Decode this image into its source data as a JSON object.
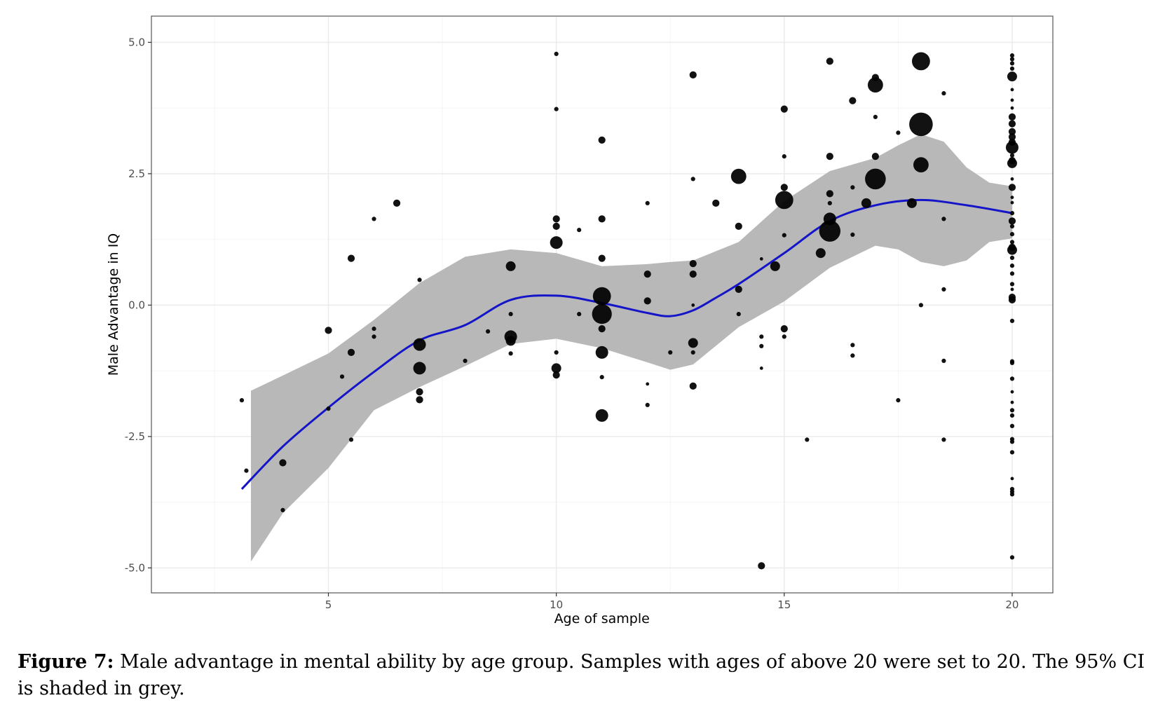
{
  "chart_data": {
    "type": "scatter",
    "title": "",
    "xlabel": "Age of sample",
    "ylabel": "Male Advantage in IQ",
    "xlim": [
      1.1,
      20.9
    ],
    "ylim": [
      -5.48,
      5.5
    ],
    "x_ticks": [
      5,
      10,
      15,
      20
    ],
    "x_tick_labels": [
      "5",
      "10",
      "15",
      "20"
    ],
    "y_ticks": [
      5,
      2.5,
      0,
      -2.5,
      -5
    ],
    "y_tick_labels": [
      "5.0",
      "2.5",
      "0.0",
      "-2.5",
      "-5.0"
    ],
    "grid": true,
    "legend": "none",
    "colors": {
      "points": "#000000",
      "smooth": "#1414c8",
      "ribbon": "#b8b8b8",
      "grid_major": "#ebebeb",
      "grid_minor": "#f4f4f4"
    },
    "points_format": "[age, male_advantage, relative_size]",
    "points": [
      [
        3.1,
        -1.81,
        0.5
      ],
      [
        3.2,
        -3.15,
        0.5
      ],
      [
        4,
        -3.0,
        1
      ],
      [
        4,
        -3.9,
        0.5
      ],
      [
        5,
        -0.48,
        1
      ],
      [
        5,
        -1.97,
        0.5
      ],
      [
        5.3,
        -1.36,
        0.5
      ],
      [
        5.5,
        -0.9,
        1
      ],
      [
        5.5,
        0.89,
        1
      ],
      [
        5.5,
        -2.56,
        0.5
      ],
      [
        6,
        1.64,
        0.5
      ],
      [
        6,
        -0.45,
        0.5
      ],
      [
        6,
        -0.6,
        0.5
      ],
      [
        6.5,
        1.94,
        1
      ],
      [
        7,
        0.48,
        0.5
      ],
      [
        7,
        -0.75,
        2
      ],
      [
        7,
        -1.2,
        2
      ],
      [
        7,
        -1.65,
        1
      ],
      [
        7,
        -1.8,
        1
      ],
      [
        8,
        -1.06,
        0.5
      ],
      [
        8.5,
        -0.5,
        0.5
      ],
      [
        9,
        0.74,
        1.5
      ],
      [
        9,
        -0.17,
        0.5
      ],
      [
        9,
        -0.6,
        2
      ],
      [
        9,
        -0.68,
        1.5
      ],
      [
        9,
        -0.92,
        0.5
      ],
      [
        10,
        4.78,
        0.5
      ],
      [
        10,
        3.73,
        0.5
      ],
      [
        10,
        1.64,
        1
      ],
      [
        10,
        1.5,
        1
      ],
      [
        10,
        1.19,
        2
      ],
      [
        10,
        -0.9,
        0.5
      ],
      [
        10,
        -1.2,
        1.5
      ],
      [
        10,
        -1.33,
        1
      ],
      [
        10.5,
        1.43,
        0.5
      ],
      [
        10.5,
        -0.17,
        0.5
      ],
      [
        11,
        3.14,
        1
      ],
      [
        11,
        1.64,
        1
      ],
      [
        11,
        0.89,
        1
      ],
      [
        11,
        0.17,
        3
      ],
      [
        11,
        -0.17,
        3.3
      ],
      [
        11,
        -0.45,
        1
      ],
      [
        11,
        -0.9,
        2
      ],
      [
        11,
        -1.37,
        0.5
      ],
      [
        11,
        -2.1,
        2
      ],
      [
        12,
        1.94,
        0.5
      ],
      [
        12,
        0.59,
        1
      ],
      [
        12,
        0.08,
        1
      ],
      [
        12,
        -1.5,
        0.3
      ],
      [
        12,
        -1.9,
        0.5
      ],
      [
        12.5,
        -0.9,
        0.5
      ],
      [
        13,
        4.38,
        1
      ],
      [
        13,
        2.4,
        0.5
      ],
      [
        13,
        0.79,
        1
      ],
      [
        13,
        0.59,
        1
      ],
      [
        13,
        0,
        0.3
      ],
      [
        13,
        -0.72,
        1.5
      ],
      [
        13,
        -0.9,
        0.5
      ],
      [
        13,
        -1.54,
        1
      ],
      [
        13.5,
        1.94,
        1
      ],
      [
        14,
        2.45,
        2.5
      ],
      [
        14,
        1.5,
        1
      ],
      [
        14,
        0.3,
        1
      ],
      [
        14,
        -0.17,
        0.5
      ],
      [
        14.5,
        0.88,
        0.3
      ],
      [
        14.5,
        -0.6,
        0.5
      ],
      [
        14.5,
        -0.78,
        0.5
      ],
      [
        14.5,
        -1.2,
        0.3
      ],
      [
        14.5,
        -4.96,
        1
      ],
      [
        14.8,
        0.74,
        1.5
      ],
      [
        15,
        3.73,
        1
      ],
      [
        15,
        2.83,
        0.5
      ],
      [
        15,
        2.24,
        1
      ],
      [
        15,
        2.0,
        3
      ],
      [
        15,
        1.33,
        0.5
      ],
      [
        15,
        -0.45,
        1
      ],
      [
        15,
        -0.6,
        0.5
      ],
      [
        15.5,
        -2.56,
        0.5
      ],
      [
        15.8,
        0.99,
        1.5
      ],
      [
        16,
        4.64,
        1
      ],
      [
        16,
        2.83,
        1
      ],
      [
        16,
        2.12,
        1
      ],
      [
        16,
        1.94,
        0.5
      ],
      [
        16,
        1.64,
        2
      ],
      [
        16,
        1.41,
        3.6
      ],
      [
        16.5,
        3.89,
        1
      ],
      [
        16.5,
        2.24,
        0.5
      ],
      [
        16.5,
        1.34,
        0.5
      ],
      [
        16.5,
        -0.76,
        0.5
      ],
      [
        16.5,
        -0.96,
        0.5
      ],
      [
        16.8,
        1.94,
        1.5
      ],
      [
        17,
        4.33,
        1
      ],
      [
        17,
        4.19,
        2.5
      ],
      [
        17,
        3.58,
        0.5
      ],
      [
        17,
        2.83,
        1
      ],
      [
        17,
        2.4,
        3.5
      ],
      [
        17.5,
        3.28,
        0.5
      ],
      [
        17.5,
        -1.81,
        0.5
      ],
      [
        17.8,
        1.94,
        1.5
      ],
      [
        18,
        4.64,
        3
      ],
      [
        18,
        3.44,
        4
      ],
      [
        18,
        2.67,
        2.5
      ],
      [
        18,
        0,
        0.5
      ],
      [
        18.5,
        4.03,
        0.5
      ],
      [
        18.5,
        1.64,
        0.5
      ],
      [
        18.5,
        0.3,
        0.5
      ],
      [
        18.5,
        -1.06,
        0.5
      ],
      [
        18.5,
        -2.56,
        0.5
      ],
      [
        20,
        4.75,
        0.5
      ],
      [
        20,
        4.68,
        0.5
      ],
      [
        20,
        4.6,
        0.5
      ],
      [
        20,
        4.5,
        0.5
      ],
      [
        20,
        4.35,
        1.5
      ],
      [
        20,
        4.1,
        0.3
      ],
      [
        20,
        3.9,
        0.3
      ],
      [
        20,
        3.75,
        0.3
      ],
      [
        20,
        3.58,
        1
      ],
      [
        20,
        3.45,
        1
      ],
      [
        20,
        3.3,
        1
      ],
      [
        20,
        3.2,
        1
      ],
      [
        20,
        3.1,
        1
      ],
      [
        20,
        3.0,
        2
      ],
      [
        20,
        2.85,
        0.5
      ],
      [
        20,
        2.75,
        1
      ],
      [
        20,
        2.7,
        1.5
      ],
      [
        20,
        2.4,
        0.3
      ],
      [
        20,
        2.24,
        1
      ],
      [
        20,
        2.05,
        0.3
      ],
      [
        20,
        1.95,
        0.3
      ],
      [
        20,
        1.75,
        0.5
      ],
      [
        20,
        1.6,
        1
      ],
      [
        20,
        1.5,
        0.5
      ],
      [
        20,
        1.35,
        0.5
      ],
      [
        20,
        1.2,
        0.5
      ],
      [
        20,
        1.1,
        1
      ],
      [
        20,
        1.05,
        1.5
      ],
      [
        20,
        0.9,
        0.5
      ],
      [
        20,
        0.75,
        0.5
      ],
      [
        20,
        0.6,
        0.5
      ],
      [
        20,
        0.4,
        0.5
      ],
      [
        20,
        0.3,
        0.3
      ],
      [
        20,
        0.15,
        1
      ],
      [
        20,
        0.1,
        1
      ],
      [
        20,
        -0.3,
        0.5
      ],
      [
        20,
        -1.07,
        0.5
      ],
      [
        20,
        -1.1,
        0.5
      ],
      [
        20,
        -1.4,
        0.5
      ],
      [
        20,
        -1.65,
        0.3
      ],
      [
        20,
        -1.85,
        0.3
      ],
      [
        20,
        -2.0,
        0.5
      ],
      [
        20,
        -2.1,
        0.5
      ],
      [
        20,
        -2.3,
        0.5
      ],
      [
        20,
        -2.55,
        0.5
      ],
      [
        20,
        -2.6,
        0.5
      ],
      [
        20,
        -2.8,
        0.5
      ],
      [
        20,
        -3.3,
        0.3
      ],
      [
        20,
        -3.5,
        0.5
      ],
      [
        20,
        -3.55,
        0.5
      ],
      [
        20,
        -3.6,
        0.5
      ],
      [
        20,
        -4.8,
        0.5
      ]
    ],
    "smooth": {
      "x": [
        3.1,
        4,
        5,
        6,
        7,
        8,
        9,
        10,
        11,
        12,
        12.5,
        13,
        13.5,
        14,
        15,
        16,
        17,
        18,
        19,
        20
      ],
      "y": [
        -3.5,
        -2.69,
        -1.95,
        -1.27,
        -0.67,
        -0.38,
        0.1,
        0.18,
        0.04,
        -0.15,
        -0.21,
        -0.1,
        0.14,
        0.4,
        0.99,
        1.6,
        1.9,
        2.0,
        1.9,
        1.75
      ]
    },
    "ci95": {
      "x": [
        3.3,
        4,
        5,
        6,
        7,
        8,
        9,
        10,
        11,
        12,
        12.5,
        13,
        14,
        15,
        16,
        17,
        17.5,
        18,
        18.5,
        19,
        19.5,
        20
      ],
      "upper": [
        -1.63,
        -1.34,
        -0.92,
        -0.28,
        0.42,
        0.92,
        1.06,
        0.99,
        0.74,
        0.78,
        0.82,
        0.85,
        1.2,
        1.98,
        2.55,
        2.8,
        3.04,
        3.25,
        3.11,
        2.62,
        2.33,
        2.26
      ],
      "lower": [
        -4.88,
        -3.96,
        -3.1,
        -2.0,
        -1.56,
        -1.16,
        -0.74,
        -0.64,
        -0.82,
        -1.09,
        -1.23,
        -1.13,
        -0.42,
        0.07,
        0.71,
        1.13,
        1.06,
        0.82,
        0.74,
        0.85,
        1.2,
        1.27
      ]
    }
  },
  "caption": {
    "label": "Figure 7:",
    "text": " Male advantage in mental ability by age group. Samples with ages of above 20 were set to 20. The 95% CI is shaded in grey."
  }
}
